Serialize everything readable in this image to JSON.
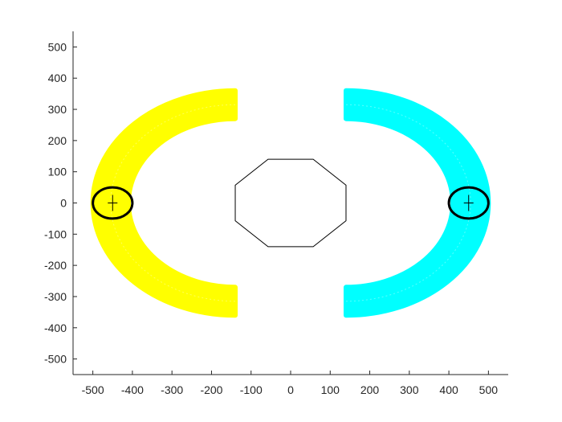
{
  "chart_data": {
    "type": "scatter",
    "title": "",
    "xlabel": "",
    "ylabel": "",
    "xlim": [
      -550,
      550
    ],
    "ylim": [
      -550,
      550
    ],
    "grid": false,
    "x_ticks": [
      -500,
      -400,
      -300,
      -200,
      -100,
      0,
      100,
      200,
      300,
      400,
      500
    ],
    "y_ticks": [
      500,
      400,
      300,
      200,
      100,
      0,
      -100,
      -200,
      -300,
      -400,
      -500
    ],
    "x_tick_labels": [
      "-500",
      "-400",
      "-300",
      "-200",
      "-100",
      "0",
      "100",
      "200",
      "300",
      "400",
      "500"
    ],
    "y_tick_labels": [
      "500",
      "400",
      "300",
      "200",
      "100",
      "0",
      "-100",
      "-200",
      "-300",
      "-400",
      "-500"
    ],
    "series": [
      {
        "shape": "annular-arc",
        "color": "#ffff00",
        "center": [
          -140,
          0
        ],
        "inner_radius": 270,
        "outer_radius": 360,
        "arc_start_deg": 90,
        "arc_end_deg": 270
      },
      {
        "shape": "annular-arc",
        "color": "#00ffff",
        "center": [
          140,
          0
        ],
        "inner_radius": 270,
        "outer_radius": 360,
        "arc_start_deg": -90,
        "arc_end_deg": 90
      }
    ],
    "octagon": {
      "vertices": [
        [
          -57,
          140
        ],
        [
          57,
          140
        ],
        [
          140,
          57
        ],
        [
          140,
          -57
        ],
        [
          57,
          -140
        ],
        [
          -57,
          -140
        ],
        [
          -140,
          -57
        ],
        [
          -140,
          57
        ]
      ],
      "color": "#000000"
    },
    "markers": [
      {
        "center": [
          -450,
          0
        ],
        "rx": 50,
        "ry": 50,
        "color": "#000000"
      },
      {
        "center": [
          450,
          0
        ],
        "rx": 50,
        "ry": 50,
        "color": "#000000"
      }
    ]
  }
}
